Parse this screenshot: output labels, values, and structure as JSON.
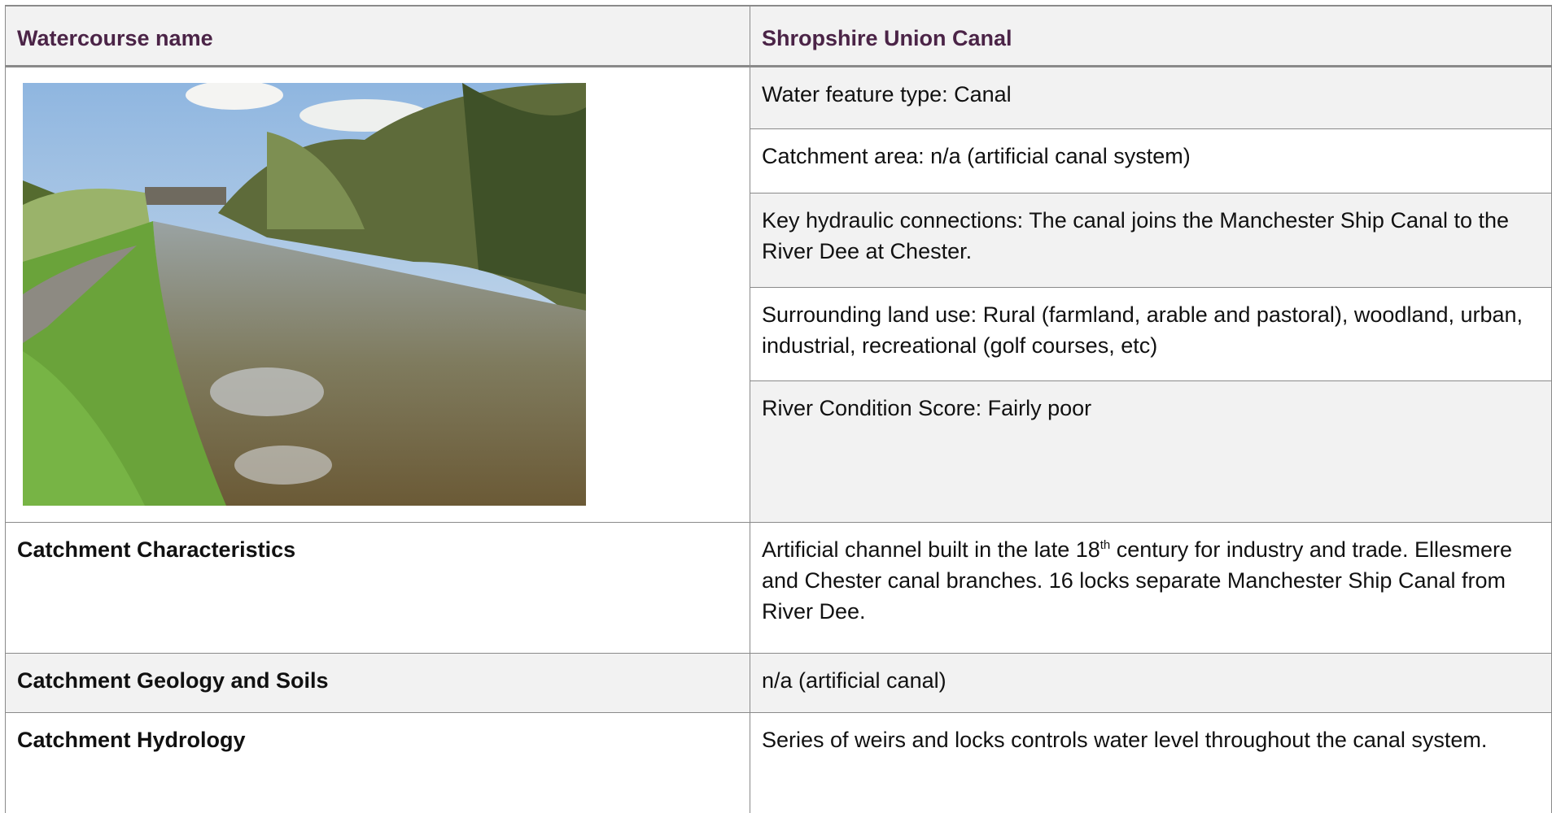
{
  "table": {
    "header": {
      "left": "Watercourse name",
      "right": "Shropshire Union Canal"
    },
    "features": [
      "Water feature type: Canal",
      "Catchment area: n/a (artificial canal system)",
      "Key hydraulic connections: The canal joins the Manchester Ship Canal to the River Dee at Chester.",
      "Surrounding land use: Rural (farmland, arable and pastoral), woodland, urban, industrial, recreational (golf courses, etc)",
      "River Condition Score: Fairly poor"
    ],
    "rows": [
      {
        "label": "Catchment Characteristics",
        "text": [
          "Artificial channel built in the late 18",
          "th",
          " century for industry and trade. Ellesmere and Chester canal branches. 16 locks separate Manchester Ship Canal from River Dee."
        ]
      },
      {
        "label": "Catchment Geology and Soils",
        "text": [
          "n/a (artificial canal)"
        ]
      },
      {
        "label": "Catchment Hydrology",
        "text": [
          "Series of weirs and locks controls water level throughout the canal system."
        ]
      }
    ]
  }
}
